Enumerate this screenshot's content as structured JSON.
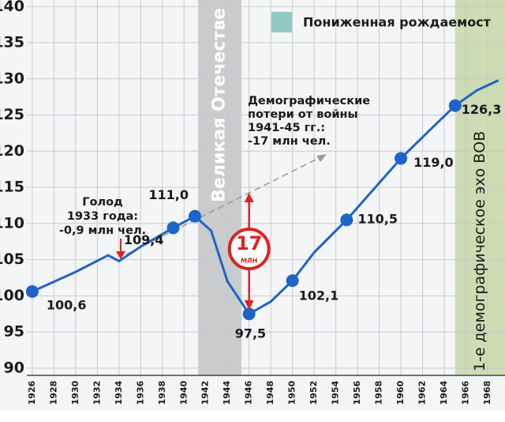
{
  "chart_data": {
    "type": "line",
    "x": [
      1926,
      1930,
      1933,
      1934,
      1936,
      1939,
      1941,
      1942.5,
      1944,
      1946,
      1948,
      1950,
      1952,
      1955,
      1958,
      1960,
      1963,
      1965,
      1967,
      1969
    ],
    "values": [
      100.6,
      103.3,
      105.6,
      104.8,
      106.8,
      109.4,
      111.0,
      109.0,
      102.0,
      97.5,
      99.2,
      102.1,
      106.0,
      110.5,
      115.6,
      119.0,
      123.4,
      126.3,
      128.4,
      129.8
    ],
    "color": "#1e64c8",
    "markers": {
      "x": [
        1926,
        1939,
        1941,
        1946,
        1950,
        1955,
        1960,
        1965
      ],
      "values": [
        100.6,
        109.4,
        111.0,
        97.5,
        102.1,
        110.5,
        119.0,
        126.3
      ],
      "value_labels": [
        "100,6",
        "109,4",
        "111,0",
        "97,5",
        "102,1",
        "110,5",
        "119,0",
        "126,3"
      ]
    },
    "xlim": [
      1925.5,
      1969.6
    ],
    "xticks": [
      1926,
      1928,
      1930,
      1932,
      1934,
      1936,
      1938,
      1940,
      1942,
      1944,
      1946,
      1948,
      1950,
      1952,
      1954,
      1956,
      1958,
      1960,
      1962,
      1964,
      1966,
      1968
    ],
    "ylim": [
      89,
      140.9
    ],
    "yticks": [
      90,
      95,
      100,
      105,
      110,
      115,
      120,
      125,
      130,
      135,
      140
    ],
    "grid": true,
    "legend": "Пониженная рождаемост",
    "bands": [
      {
        "from": 1941.3,
        "to": 1945.3,
        "color": "#c9cbcc",
        "label": "Великая Отечестве"
      },
      {
        "from": 1965,
        "to": 1969.6,
        "color": "#cddcb3",
        "label": "1-е демографическое эхо ВОВ"
      }
    ],
    "annotations": {
      "famine": [
        "Голод",
        "1933 года:",
        "-0,9 млн чел."
      ],
      "losses": [
        "Демографические",
        "потери от войны",
        "1941-45 гг.:",
        "-17 млн чел."
      ],
      "circle_number": "17",
      "circle_unit": "МЛН"
    }
  }
}
